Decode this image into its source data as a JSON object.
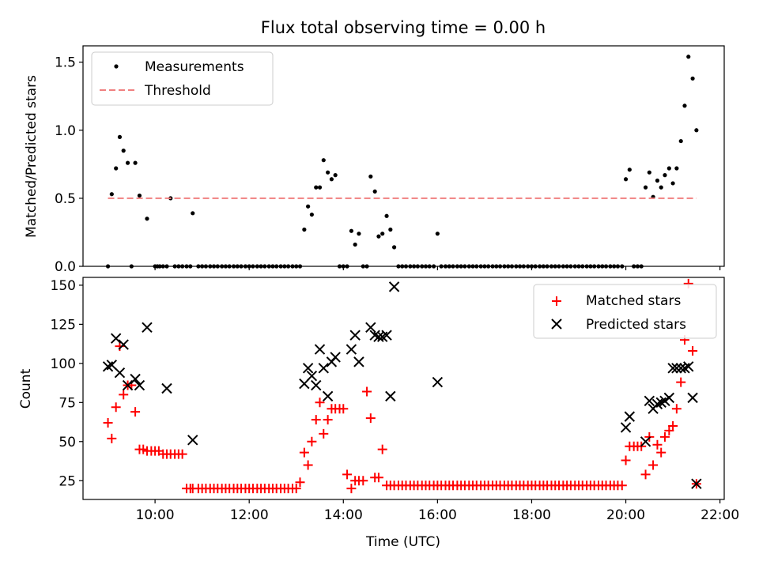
{
  "figure": {
    "title": "Flux total observing time = 0.00 h",
    "xlabel": "Time (UTC)"
  },
  "chart_data": [
    {
      "type": "scatter",
      "title": "Flux total observing time = 0.00 h",
      "xlabel": "",
      "ylabel": "Matched/Predicted stars",
      "xlim": [
        8.47,
        22.09
      ],
      "ylim": [
        0,
        1.62
      ],
      "yticks": [
        0.0,
        0.5,
        1.0,
        1.5
      ],
      "ytick_labels": [
        "0.0",
        "0.5",
        "1.0",
        "1.5"
      ],
      "legend_position": "upper-left",
      "grid": false,
      "series": [
        {
          "name": "Measurements",
          "marker": "dot",
          "color": "#000000",
          "x": [
            9.0,
            9.08,
            9.17,
            9.25,
            9.33,
            9.42,
            9.5,
            9.58,
            9.67,
            9.83,
            10.0,
            10.05,
            10.1,
            10.17,
            10.25,
            10.33,
            10.42,
            10.5,
            10.58,
            10.67,
            10.75,
            10.8,
            10.92,
            11.0,
            11.08,
            11.17,
            11.25,
            11.33,
            11.42,
            11.5,
            11.58,
            11.67,
            11.75,
            11.83,
            11.92,
            12.0,
            12.08,
            12.17,
            12.25,
            12.33,
            12.42,
            12.5,
            12.58,
            12.67,
            12.75,
            12.83,
            12.92,
            13.0,
            13.08,
            13.17,
            13.25,
            13.33,
            13.42,
            13.5,
            13.58,
            13.67,
            13.75,
            13.83,
            13.92,
            14.0,
            14.08,
            14.17,
            14.25,
            14.33,
            14.42,
            14.5,
            14.58,
            14.67,
            14.75,
            14.83,
            14.92,
            15.0,
            15.08,
            15.17,
            15.25,
            15.33,
            15.42,
            15.5,
            15.58,
            15.67,
            15.75,
            15.83,
            15.92,
            16.0,
            16.08,
            16.17,
            16.25,
            16.33,
            16.42,
            16.5,
            16.58,
            16.67,
            16.75,
            16.83,
            16.92,
            17.0,
            17.08,
            17.17,
            17.25,
            17.33,
            17.42,
            17.5,
            17.58,
            17.67,
            17.75,
            17.83,
            17.92,
            18.0,
            18.08,
            18.17,
            18.25,
            18.33,
            18.42,
            18.5,
            18.58,
            18.67,
            18.75,
            18.83,
            18.92,
            19.0,
            19.08,
            19.17,
            19.25,
            19.33,
            19.42,
            19.5,
            19.58,
            19.67,
            19.75,
            19.83,
            19.92,
            20.0,
            20.08,
            20.17,
            20.25,
            20.33,
            20.42,
            20.5,
            20.58,
            20.67,
            20.75,
            20.83,
            20.92,
            21.0,
            21.08,
            21.17,
            21.25,
            21.33,
            21.42,
            21.5
          ],
          "y": [
            0.0,
            0.53,
            0.72,
            0.95,
            0.85,
            0.76,
            0.0,
            0.76,
            0.52,
            0.35,
            0.0,
            0.0,
            0.0,
            0.0,
            0.0,
            0.5,
            0.0,
            0.0,
            0.0,
            0.0,
            0.0,
            0.39,
            0.0,
            0.0,
            0.0,
            0.0,
            0.0,
            0.0,
            0.0,
            0.0,
            0.0,
            0.0,
            0.0,
            0.0,
            0.0,
            0.0,
            0.0,
            0.0,
            0.0,
            0.0,
            0.0,
            0.0,
            0.0,
            0.0,
            0.0,
            0.0,
            0.0,
            0.0,
            0.0,
            0.27,
            0.44,
            0.38,
            0.58,
            0.58,
            0.78,
            0.69,
            0.64,
            0.67,
            0.0,
            0.0,
            0.0,
            0.26,
            0.16,
            0.24,
            0.0,
            0.0,
            0.66,
            0.55,
            0.22,
            0.24,
            0.37,
            0.27,
            0.14,
            0.0,
            0.0,
            0.0,
            0.0,
            0.0,
            0.0,
            0.0,
            0.0,
            0.0,
            0.0,
            0.24,
            0.0,
            0.0,
            0.0,
            0.0,
            0.0,
            0.0,
            0.0,
            0.0,
            0.0,
            0.0,
            0.0,
            0.0,
            0.0,
            0.0,
            0.0,
            0.0,
            0.0,
            0.0,
            0.0,
            0.0,
            0.0,
            0.0,
            0.0,
            0.0,
            0.0,
            0.0,
            0.0,
            0.0,
            0.0,
            0.0,
            0.0,
            0.0,
            0.0,
            0.0,
            0.0,
            0.0,
            0.0,
            0.0,
            0.0,
            0.0,
            0.0,
            0.0,
            0.0,
            0.0,
            0.0,
            0.0,
            0.0,
            0.64,
            0.71,
            0.0,
            0.0,
            0.0,
            0.58,
            0.69,
            0.51,
            0.63,
            0.58,
            0.67,
            0.72,
            0.61,
            0.72,
            0.92,
            1.18,
            1.54,
            1.38,
            1.0
          ]
        },
        {
          "name": "Threshold",
          "line": "dashed",
          "color": "#f08080",
          "x": [
            9.0,
            21.5
          ],
          "y": [
            0.5,
            0.5
          ]
        }
      ]
    },
    {
      "type": "scatter",
      "title": "",
      "xlabel": "Time (UTC)",
      "ylabel": "Count",
      "xlim": [
        8.47,
        22.09
      ],
      "ylim": [
        13,
        155
      ],
      "xticks": [
        10,
        12,
        14,
        16,
        18,
        20,
        22
      ],
      "xtick_labels": [
        "10:00",
        "12:00",
        "14:00",
        "16:00",
        "18:00",
        "20:00",
        "22:00"
      ],
      "yticks": [
        25,
        50,
        75,
        100,
        125,
        150
      ],
      "ytick_labels": [
        "25",
        "50",
        "75",
        "100",
        "125",
        "150"
      ],
      "legend_position": "upper-right",
      "grid": false,
      "series": [
        {
          "name": "Matched stars",
          "marker": "plus",
          "color": "#ff0000",
          "x": [
            9.0,
            9.08,
            9.17,
            9.25,
            9.33,
            9.42,
            9.5,
            9.58,
            9.67,
            9.75,
            9.83,
            9.92,
            10.0,
            10.08,
            10.17,
            10.25,
            10.33,
            10.42,
            10.5,
            10.58,
            10.67,
            10.75,
            10.8,
            10.92,
            11.0,
            11.08,
            11.17,
            11.25,
            11.33,
            11.42,
            11.5,
            11.58,
            11.67,
            11.75,
            11.83,
            11.92,
            12.0,
            12.08,
            12.17,
            12.25,
            12.33,
            12.42,
            12.5,
            12.58,
            12.67,
            12.75,
            12.83,
            12.92,
            13.0,
            13.08,
            13.17,
            13.25,
            13.33,
            13.42,
            13.5,
            13.58,
            13.67,
            13.75,
            13.83,
            13.92,
            14.0,
            14.08,
            14.17,
            14.25,
            14.33,
            14.42,
            14.5,
            14.58,
            14.67,
            14.75,
            14.83,
            14.92,
            15.0,
            15.08,
            15.17,
            15.25,
            15.33,
            15.42,
            15.5,
            15.58,
            15.67,
            15.75,
            15.83,
            15.92,
            16.0,
            16.08,
            16.17,
            16.25,
            16.33,
            16.42,
            16.5,
            16.58,
            16.67,
            16.75,
            16.83,
            16.92,
            17.0,
            17.08,
            17.17,
            17.25,
            17.33,
            17.42,
            17.5,
            17.58,
            17.67,
            17.75,
            17.83,
            17.92,
            18.0,
            18.08,
            18.17,
            18.25,
            18.33,
            18.42,
            18.5,
            18.58,
            18.67,
            18.75,
            18.83,
            18.92,
            19.0,
            19.08,
            19.17,
            19.25,
            19.33,
            19.42,
            19.5,
            19.58,
            19.67,
            19.75,
            19.83,
            19.92,
            20.0,
            20.08,
            20.17,
            20.25,
            20.33,
            20.42,
            20.5,
            20.58,
            20.67,
            20.75,
            20.83,
            20.92,
            21.0,
            21.08,
            21.17,
            21.25,
            21.33,
            21.42,
            21.5
          ],
          "y": [
            62,
            52,
            72,
            111,
            80,
            86,
            86,
            69,
            45,
            45,
            44,
            44,
            44,
            44,
            42,
            42,
            42,
            42,
            42,
            42,
            20,
            20,
            20,
            20,
            20,
            20,
            20,
            20,
            20,
            20,
            20,
            20,
            20,
            20,
            20,
            20,
            20,
            20,
            20,
            20,
            20,
            20,
            20,
            20,
            20,
            20,
            20,
            20,
            20,
            24,
            43,
            35,
            50,
            64,
            75,
            55,
            64,
            71,
            71,
            71,
            71,
            29,
            20,
            25,
            25,
            25,
            82,
            65,
            27,
            27,
            45,
            22,
            22,
            22,
            22,
            22,
            22,
            22,
            22,
            22,
            22,
            22,
            22,
            22,
            22,
            22,
            22,
            22,
            22,
            22,
            22,
            22,
            22,
            22,
            22,
            22,
            22,
            22,
            22,
            22,
            22,
            22,
            22,
            22,
            22,
            22,
            22,
            22,
            22,
            22,
            22,
            22,
            22,
            22,
            22,
            22,
            22,
            22,
            22,
            22,
            22,
            22,
            22,
            22,
            22,
            22,
            22,
            22,
            22,
            22,
            22,
            22,
            38,
            47,
            47,
            47,
            47,
            29,
            53,
            35,
            48,
            43,
            53,
            57,
            60,
            71,
            88,
            115,
            151,
            108,
            23
          ]
        },
        {
          "name": "Predicted stars",
          "marker": "x",
          "color": "#000000",
          "x": [
            9.0,
            9.08,
            9.17,
            9.25,
            9.33,
            9.42,
            9.58,
            9.67,
            9.83,
            10.25,
            10.8,
            13.17,
            13.25,
            13.33,
            13.42,
            13.5,
            13.58,
            13.67,
            13.75,
            13.83,
            14.17,
            14.25,
            14.33,
            14.58,
            14.67,
            14.75,
            14.83,
            14.92,
            15.0,
            15.08,
            16.0,
            20.0,
            20.08,
            20.42,
            20.5,
            20.58,
            20.67,
            20.75,
            20.83,
            20.92,
            21.0,
            21.08,
            21.17,
            21.25,
            21.33,
            21.42,
            21.5
          ],
          "y": [
            98,
            99,
            116,
            94,
            112,
            86,
            90,
            86,
            123,
            84,
            51,
            87,
            97,
            92,
            86,
            109,
            97,
            79,
            101,
            104,
            109,
            118,
            101,
            123,
            118,
            117,
            117,
            118,
            79,
            149,
            88,
            59,
            66,
            50,
            76,
            71,
            74,
            75,
            76,
            78,
            97,
            97,
            97,
            97,
            98,
            78,
            23
          ]
        }
      ]
    }
  ]
}
